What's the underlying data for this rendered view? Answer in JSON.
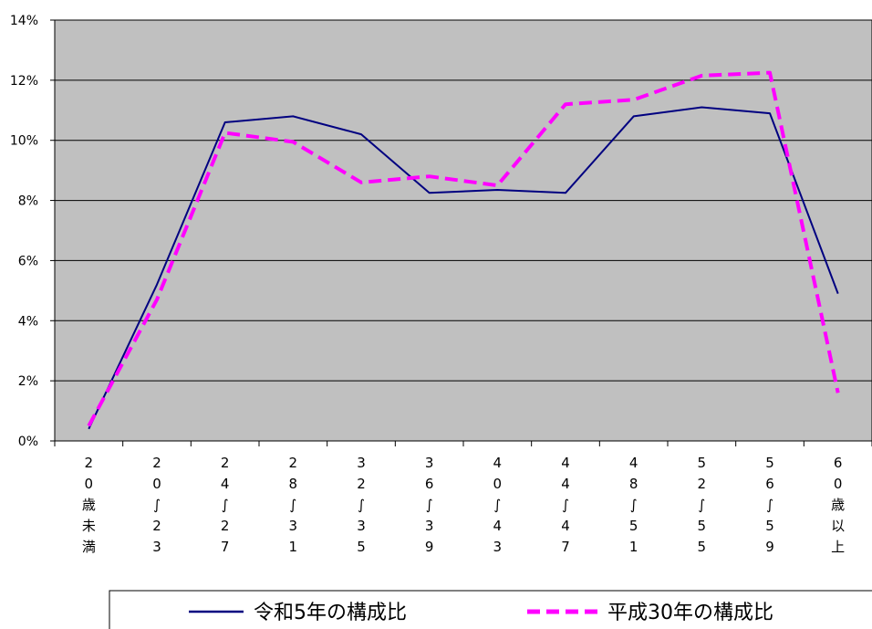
{
  "chart_data": {
    "type": "line",
    "title": "",
    "xlabel": "",
    "ylabel": "",
    "ylim": [
      0,
      14
    ],
    "yticks": [
      "0%",
      "2%",
      "4%",
      "6%",
      "8%",
      "10%",
      "12%",
      "14%"
    ],
    "grid": true,
    "legend_position": "bottom",
    "plot_background": "#c0c0c0",
    "categories": [
      "20歳未満",
      "20～23",
      "24～27",
      "28～31",
      "32～35",
      "36～39",
      "40～43",
      "44～47",
      "48～51",
      "52～55",
      "56～59",
      "60歳以上"
    ],
    "category_labels_vertical": [
      [
        "2",
        "0",
        "歳",
        "未",
        "満"
      ],
      [
        "2",
        "0",
        "∫",
        "2",
        "3"
      ],
      [
        "2",
        "4",
        "∫",
        "2",
        "7"
      ],
      [
        "2",
        "8",
        "∫",
        "3",
        "1"
      ],
      [
        "3",
        "2",
        "∫",
        "3",
        "5"
      ],
      [
        "3",
        "6",
        "∫",
        "3",
        "9"
      ],
      [
        "4",
        "0",
        "∫",
        "4",
        "3"
      ],
      [
        "4",
        "4",
        "∫",
        "4",
        "7"
      ],
      [
        "4",
        "8",
        "∫",
        "5",
        "1"
      ],
      [
        "5",
        "2",
        "∫",
        "5",
        "5"
      ],
      [
        "5",
        "6",
        "∫",
        "5",
        "9"
      ],
      [
        "6",
        "0",
        "歳",
        "以",
        "上"
      ]
    ],
    "series": [
      {
        "name": "令和5年の構成比",
        "color": "#000080",
        "style": "solid",
        "values": [
          0.4,
          5.2,
          10.6,
          10.8,
          10.2,
          8.25,
          8.35,
          8.25,
          10.8,
          11.1,
          10.9,
          4.9
        ]
      },
      {
        "name": "平成30年の構成比",
        "color": "#ff00ff",
        "style": "dashed",
        "values": [
          0.5,
          4.7,
          10.25,
          9.95,
          8.6,
          8.8,
          8.5,
          11.2,
          11.35,
          12.15,
          12.25,
          1.6
        ]
      }
    ]
  }
}
